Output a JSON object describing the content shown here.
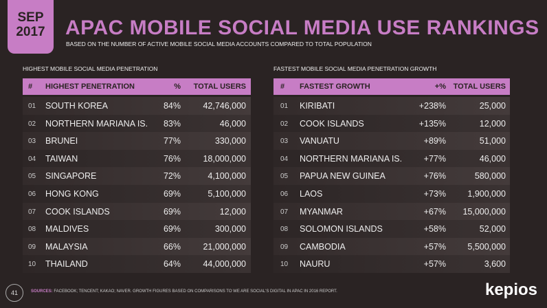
{
  "header": {
    "badge_month": "SEP",
    "badge_year": "2017",
    "title": "APAC MOBILE SOCIAL MEDIA USE RANKINGS",
    "subtitle": "BASED ON THE NUMBER OF ACTIVE MOBILE SOCIAL MEDIA ACCOUNTS COMPARED TO TOTAL POPULATION"
  },
  "tables": [
    {
      "caption": "HIGHEST MOBILE SOCIAL MEDIA PENETRATION",
      "columns": [
        "#",
        "HIGHEST PENETRATION",
        "%",
        "TOTAL USERS"
      ],
      "rows": [
        [
          "01",
          "SOUTH KOREA",
          "84%",
          "42,746,000"
        ],
        [
          "02",
          "NORTHERN MARIANA IS.",
          "83%",
          "46,000"
        ],
        [
          "03",
          "BRUNEI",
          "77%",
          "330,000"
        ],
        [
          "04",
          "TAIWAN",
          "76%",
          "18,000,000"
        ],
        [
          "05",
          "SINGAPORE",
          "72%",
          "4,100,000"
        ],
        [
          "06",
          "HONG KONG",
          "69%",
          "5,100,000"
        ],
        [
          "07",
          "COOK ISLANDS",
          "69%",
          "12,000"
        ],
        [
          "08",
          "MALDIVES",
          "69%",
          "300,000"
        ],
        [
          "09",
          "MALAYSIA",
          "66%",
          "21,000,000"
        ],
        [
          "10",
          "THAILAND",
          "64%",
          "44,000,000"
        ]
      ]
    },
    {
      "caption": "FASTEST MOBILE SOCIAL MEDIA PENETRATION GROWTH",
      "columns": [
        "#",
        "FASTEST GROWTH",
        "+%",
        "TOTAL USERS"
      ],
      "rows": [
        [
          "01",
          "KIRIBATI",
          "+238%",
          "25,000"
        ],
        [
          "02",
          "COOK ISLANDS",
          "+135%",
          "12,000"
        ],
        [
          "03",
          "VANUATU",
          "+89%",
          "51,000"
        ],
        [
          "04",
          "NORTHERN MARIANA IS.",
          "+77%",
          "46,000"
        ],
        [
          "05",
          "PAPUA NEW GUINEA",
          "+76%",
          "580,000"
        ],
        [
          "06",
          "LAOS",
          "+73%",
          "1,900,000"
        ],
        [
          "07",
          "MYANMAR",
          "+67%",
          "15,000,000"
        ],
        [
          "08",
          "SOLOMON ISLANDS",
          "+58%",
          "52,000"
        ],
        [
          "09",
          "CAMBODIA",
          "+57%",
          "5,500,000"
        ],
        [
          "10",
          "NAURU",
          "+57%",
          "3,600"
        ]
      ]
    }
  ],
  "watermarks": [
    "kepios",
    "kepios"
  ],
  "footer": {
    "page_number": "41",
    "sources_label": "SOURCES:",
    "sources": "FACEBOOK; TENCENT; KAKAO; NAVER. GROWTH FIGURES BASED ON COMPARISONS TO WE ARE SOCIAL'S DIGITAL IN APAC IN 2016 REPORT.",
    "logo": "kepios"
  }
}
